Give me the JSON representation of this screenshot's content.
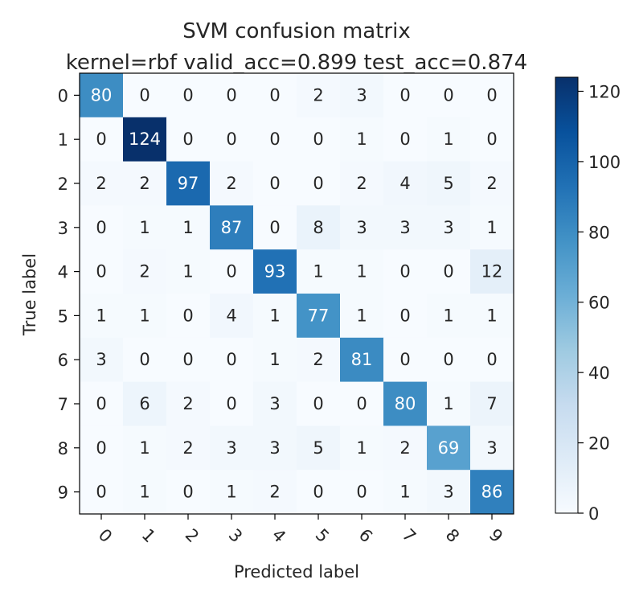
{
  "chart_data": {
    "type": "heatmap",
    "title": "SVM confusion matrix",
    "subtitle": "kernel=rbf  valid_acc=0.899  test_acc=0.874",
    "xlabel": "Predicted label",
    "ylabel": "True label",
    "x_tick_labels": [
      "0",
      "1",
      "2",
      "3",
      "4",
      "5",
      "6",
      "7",
      "8",
      "9"
    ],
    "y_tick_labels": [
      "0",
      "1",
      "2",
      "3",
      "4",
      "5",
      "6",
      "7",
      "8",
      "9"
    ],
    "matrix": [
      [
        80,
        0,
        0,
        0,
        0,
        2,
        3,
        0,
        0,
        0
      ],
      [
        0,
        124,
        0,
        0,
        0,
        0,
        1,
        0,
        1,
        0
      ],
      [
        2,
        2,
        97,
        2,
        0,
        0,
        2,
        4,
        5,
        2
      ],
      [
        0,
        1,
        1,
        87,
        0,
        8,
        3,
        3,
        3,
        1
      ],
      [
        0,
        2,
        1,
        0,
        93,
        1,
        1,
        0,
        0,
        12
      ],
      [
        1,
        1,
        0,
        4,
        1,
        77,
        1,
        0,
        1,
        1
      ],
      [
        3,
        0,
        0,
        0,
        1,
        2,
        81,
        0,
        0,
        0
      ],
      [
        0,
        6,
        2,
        0,
        3,
        0,
        0,
        80,
        1,
        7
      ],
      [
        0,
        1,
        2,
        3,
        3,
        5,
        1,
        2,
        69,
        3
      ],
      [
        0,
        1,
        0,
        1,
        2,
        0,
        0,
        1,
        3,
        86
      ]
    ],
    "colormap": "Blues",
    "colormap_stops": [
      "#f7fbff",
      "#deebf7",
      "#c6dbef",
      "#9ecae1",
      "#6baed6",
      "#4292c6",
      "#2171b5",
      "#08519c",
      "#08306b"
    ],
    "value_range": [
      0,
      124
    ],
    "colorbar_ticks": [
      0,
      20,
      40,
      60,
      80,
      100,
      120
    ],
    "text_color_dark": "#262626",
    "text_color_light": "#ffffff"
  }
}
